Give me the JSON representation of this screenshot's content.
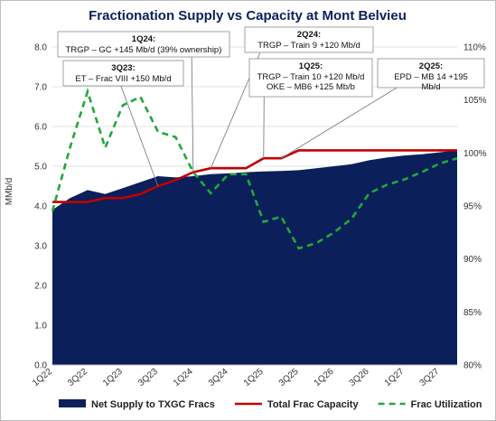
{
  "chart_data": {
    "type": "area",
    "title": "Fractionation Supply vs Capacity at Mont Belvieu",
    "ylabel": "MMb/d",
    "ylim": [
      0,
      8
    ],
    "y_ticks": [
      "0.0",
      "1.0",
      "2.0",
      "3.0",
      "4.0",
      "5.0",
      "6.0",
      "7.0",
      "8.0"
    ],
    "y2lim": [
      80,
      110
    ],
    "y2_ticks": [
      "80%",
      "85%",
      "90%",
      "95%",
      "100%",
      "105%",
      "110%"
    ],
    "x_tick_labels": [
      "1Q22",
      "3Q22",
      "1Q23",
      "3Q23",
      "1Q24",
      "3Q24",
      "1Q25",
      "3Q25",
      "1Q26",
      "3Q26",
      "1Q27",
      "3Q27"
    ],
    "x": [
      "1Q22",
      "2Q22",
      "3Q22",
      "4Q22",
      "1Q23",
      "2Q23",
      "3Q23",
      "4Q23",
      "1Q24",
      "2Q24",
      "3Q24",
      "4Q24",
      "1Q25",
      "2Q25",
      "3Q25",
      "4Q25",
      "1Q26",
      "2Q26",
      "3Q26",
      "4Q26",
      "1Q27",
      "2Q27",
      "3Q27",
      "4Q27"
    ],
    "series": [
      {
        "name": "Net Supply to TXGC Fracs",
        "kind": "area",
        "axis": "left",
        "color": "#0b1f5b",
        "values": [
          3.9,
          4.2,
          4.4,
          4.3,
          4.45,
          4.6,
          4.75,
          4.72,
          4.75,
          4.8,
          4.82,
          4.85,
          4.87,
          4.88,
          4.9,
          4.95,
          5.0,
          5.05,
          5.15,
          5.22,
          5.27,
          5.3,
          5.35,
          5.4
        ]
      },
      {
        "name": "Total Frac Capacity",
        "kind": "line",
        "axis": "left",
        "color": "#c00000",
        "values": [
          4.1,
          4.1,
          4.1,
          4.2,
          4.2,
          4.3,
          4.5,
          4.65,
          4.85,
          4.95,
          4.95,
          4.95,
          5.2,
          5.2,
          5.4,
          5.4,
          5.4,
          5.4,
          5.4,
          5.4,
          5.4,
          5.4,
          5.4,
          5.4
        ]
      },
      {
        "name": "Frac Utilization",
        "kind": "dashed-line",
        "axis": "right",
        "color": "#22a83a",
        "values": [
          94.5,
          100.5,
          105.8,
          100.5,
          104.5,
          105.3,
          102,
          101.5,
          98.2,
          96.2,
          98,
          98,
          93.5,
          94,
          91,
          91.5,
          92.5,
          93.8,
          96.2,
          97,
          97.5,
          98.2,
          99,
          99.5
        ]
      }
    ],
    "annotations": [
      {
        "head": "1Q24:",
        "lines": [
          "TRGP – GC +145 Mb/d (39% ownership)"
        ],
        "target": "1Q24"
      },
      {
        "head": "3Q23:",
        "lines": [
          "ET – Frac VIII  +150 Mb/d"
        ],
        "target": "3Q23"
      },
      {
        "head": "2Q24:",
        "lines": [
          "TRGP – Train 9  +120 Mb/d"
        ],
        "target": "2Q24"
      },
      {
        "head": "1Q25:",
        "lines": [
          "TRGP – Train 10  +120 Mb/d",
          "OKE – MB6  +125 Mb/b"
        ],
        "target": "1Q25"
      },
      {
        "head": "2Q25:",
        "lines": [
          "EPD – MB 14  +195",
          "Mb/d"
        ],
        "target": "2Q25"
      }
    ],
    "legend": "bottom"
  }
}
